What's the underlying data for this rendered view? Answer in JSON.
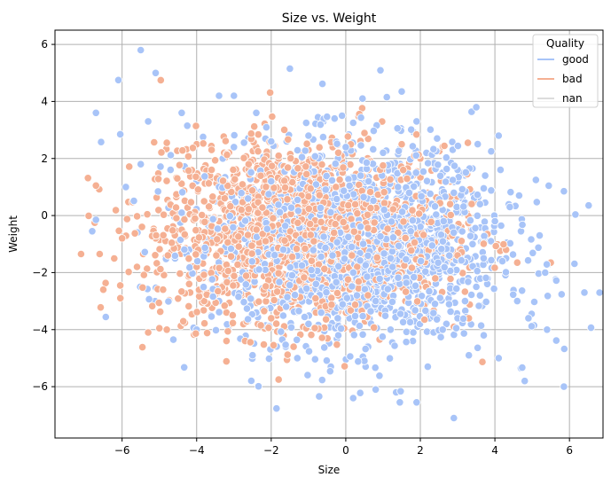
{
  "chart_data": {
    "type": "scatter",
    "title": "Size vs. Weight",
    "xlabel": "Size",
    "ylabel": "Weight",
    "xlim": [
      -7.8,
      6.9
    ],
    "ylim": [
      -7.8,
      6.5
    ],
    "xticks": [
      -6,
      -4,
      -2,
      0,
      2,
      4,
      6
    ],
    "yticks": [
      -6,
      -4,
      -2,
      0,
      2,
      4,
      6
    ],
    "grid": true,
    "legend": {
      "title": "Quality",
      "placement": "top-right",
      "entries": [
        {
          "name": "good",
          "color": "#a8c4f8"
        },
        {
          "name": "bad",
          "color": "#f5b093"
        },
        {
          "name": "nan",
          "color": "#dcdcdc"
        }
      ]
    },
    "series": [
      {
        "name": "good",
        "color": "#a8c4f8",
        "points": [
          [
            -5.5,
            5.8
          ],
          [
            -6.1,
            4.75
          ],
          [
            -5.1,
            5.0
          ],
          [
            -6.7,
            3.6
          ],
          [
            -6.05,
            2.85
          ],
          [
            -5.3,
            3.3
          ],
          [
            -4.4,
            3.6
          ],
          [
            -4.25,
            3.15
          ],
          [
            -3.4,
            4.2
          ],
          [
            -3.0,
            4.2
          ],
          [
            -2.4,
            3.6
          ],
          [
            -1.5,
            5.15
          ],
          [
            -0.6,
            3.3
          ],
          [
            -0.3,
            3.4
          ],
          [
            -0.1,
            3.5
          ],
          [
            0.2,
            3.25
          ],
          [
            0.45,
            4.1
          ],
          [
            1.1,
            4.15
          ],
          [
            1.5,
            4.35
          ],
          [
            1.9,
            3.3
          ],
          [
            2.45,
            2.7
          ],
          [
            3.5,
            3.8
          ],
          [
            3.9,
            2.25
          ],
          [
            4.1,
            2.8
          ],
          [
            4.15,
            1.6
          ],
          [
            5.1,
            1.25
          ],
          [
            5.85,
            0.85
          ],
          [
            6.4,
            -2.7
          ],
          [
            5.4,
            -4.0
          ],
          [
            5.85,
            -6.0
          ],
          [
            4.8,
            -5.8
          ],
          [
            4.1,
            -5.0
          ],
          [
            3.7,
            -4.2
          ],
          [
            2.9,
            -7.1
          ],
          [
            1.9,
            -6.55
          ],
          [
            1.45,
            -6.55
          ],
          [
            0.8,
            -6.1
          ],
          [
            0.2,
            -6.4
          ],
          [
            1.35,
            -6.2
          ],
          [
            -1.3,
            -5.0
          ],
          [
            -2.5,
            -4.9
          ],
          [
            -4.0,
            -4.0
          ],
          [
            -5.9,
            1.0
          ],
          [
            -6.8,
            -0.55
          ],
          [
            -6.7,
            -0.15
          ],
          [
            -5.5,
            1.8
          ],
          [
            -4.7,
            1.6
          ],
          [
            -3.3,
            2.0
          ],
          [
            2.6,
            1.5
          ],
          [
            3.0,
            1.2
          ],
          [
            4.4,
            0.3
          ],
          [
            4.7,
            -0.55
          ],
          [
            5.2,
            -0.7
          ],
          [
            4.3,
            -1.5
          ],
          [
            3.5,
            -2.5
          ],
          [
            4.6,
            -3.0
          ],
          [
            4.9,
            -3.6
          ],
          [
            5.05,
            -3.85
          ],
          [
            -0.4,
            -5.3
          ],
          [
            0.5,
            -5.1
          ],
          [
            2.2,
            -5.3
          ],
          [
            3.3,
            -4.9
          ],
          [
            -3.5,
            0.5
          ],
          [
            -3.1,
            -0.2
          ],
          [
            -2.8,
            0.7
          ],
          [
            -2.6,
            -1.0
          ],
          [
            -2.2,
            0.2
          ],
          [
            -2.0,
            1.2
          ],
          [
            -1.8,
            -1.8
          ],
          [
            -1.5,
            0.9
          ],
          [
            -1.2,
            -0.6
          ],
          [
            -1.0,
            1.7
          ],
          [
            -0.8,
            -2.4
          ],
          [
            -0.5,
            0.3
          ],
          [
            -0.3,
            -1.2
          ],
          [
            0.0,
            0.8
          ],
          [
            0.2,
            -2.0
          ],
          [
            0.4,
            1.4
          ],
          [
            0.6,
            -0.4
          ],
          [
            0.8,
            -3.0
          ],
          [
            1.0,
            0.1
          ],
          [
            1.2,
            -1.5
          ],
          [
            1.4,
            1.0
          ],
          [
            1.6,
            -2.6
          ],
          [
            1.8,
            -0.8
          ],
          [
            2.0,
            0.6
          ],
          [
            2.2,
            -3.4
          ],
          [
            2.4,
            -1.2
          ],
          [
            2.6,
            0.2
          ],
          [
            2.8,
            -2.0
          ],
          [
            3.0,
            -0.5
          ],
          [
            3.2,
            -3.0
          ],
          [
            3.4,
            -1.0
          ],
          [
            3.6,
            0.4
          ],
          [
            3.8,
            -2.2
          ],
          [
            4.0,
            -0.2
          ],
          [
            -3.8,
            -2.0
          ],
          [
            -3.4,
            -3.0
          ],
          [
            -2.4,
            -3.4
          ],
          [
            -1.6,
            -3.2
          ],
          [
            -1.0,
            -3.8
          ],
          [
            -0.2,
            -4.2
          ],
          [
            0.6,
            -4.6
          ],
          [
            1.2,
            -4.0
          ],
          [
            1.8,
            -4.4
          ],
          [
            2.6,
            -4.0
          ],
          [
            3.0,
            -3.6
          ],
          [
            -4.0,
            1.2
          ],
          [
            -3.0,
            2.4
          ],
          [
            -2.0,
            2.6
          ],
          [
            -1.0,
            2.8
          ],
          [
            0.0,
            2.4
          ],
          [
            1.0,
            2.2
          ],
          [
            2.0,
            2.0
          ],
          [
            3.0,
            1.6
          ],
          [
            -0.6,
            -1.8
          ],
          [
            0.3,
            -2.8
          ],
          [
            1.5,
            -3.3
          ],
          [
            2.3,
            -2.6
          ],
          [
            3.3,
            -1.6
          ],
          [
            0.9,
            -1.1
          ],
          [
            -1.4,
            -2.6
          ],
          [
            -2.6,
            1.6
          ],
          [
            -3.6,
            -0.8
          ],
          [
            -4.4,
            0.1
          ],
          [
            -4.2,
            -1.2
          ],
          [
            0.1,
            -3.6
          ],
          [
            1.1,
            -2.2
          ],
          [
            1.7,
            0.8
          ],
          [
            2.7,
            -3.8
          ],
          [
            3.6,
            -2.8
          ],
          [
            4.2,
            -1.6
          ],
          [
            -0.9,
            0.6
          ],
          [
            -1.9,
            -0.4
          ],
          [
            0.5,
            0.4
          ],
          [
            1.3,
            1.6
          ],
          [
            2.1,
            -1.7
          ],
          [
            -0.2,
            1.6
          ],
          [
            -2.9,
            -1.6
          ],
          [
            -3.2,
            1.0
          ],
          [
            2.9,
            0.8
          ],
          [
            3.9,
            0.9
          ]
        ]
      },
      {
        "name": "bad",
        "color": "#f5b093",
        "points": [
          [
            -7.1,
            -1.35
          ],
          [
            -6.6,
            -1.35
          ],
          [
            -6.7,
            1.05
          ],
          [
            -6.05,
            -2.45
          ],
          [
            -6.0,
            -0.8
          ],
          [
            -5.6,
            -1.8
          ],
          [
            -5.3,
            -4.1
          ],
          [
            -5.0,
            -3.95
          ],
          [
            -4.8,
            -4.0
          ],
          [
            -4.9,
            -2.6
          ],
          [
            -5.1,
            -0.8
          ],
          [
            -4.8,
            2.55
          ],
          [
            -4.0,
            2.5
          ],
          [
            -3.6,
            2.3
          ],
          [
            -3.2,
            -4.4
          ],
          [
            -2.7,
            -4.4
          ],
          [
            -1.8,
            -5.75
          ],
          [
            -1.4,
            -4.6
          ],
          [
            2.9,
            -3.9
          ],
          [
            3.3,
            -3.6
          ],
          [
            4.3,
            -1.2
          ],
          [
            4.6,
            -1.65
          ],
          [
            5.5,
            -1.65
          ],
          [
            3.1,
            -0.4
          ],
          [
            2.8,
            0.4
          ],
          [
            3.5,
            0.5
          ],
          [
            2.0,
            2.0
          ],
          [
            1.5,
            2.5
          ],
          [
            0.6,
            1.6
          ],
          [
            -0.2,
            2.2
          ],
          [
            -1.0,
            2.3
          ],
          [
            -1.8,
            2.0
          ],
          [
            -2.4,
            2.4
          ],
          [
            -3.0,
            1.4
          ],
          [
            -3.8,
            0.5
          ],
          [
            -4.4,
            -0.5
          ],
          [
            -4.6,
            -1.5
          ],
          [
            -4.2,
            -2.4
          ],
          [
            -3.8,
            -3.0
          ],
          [
            -3.2,
            -3.4
          ],
          [
            -2.6,
            -3.2
          ],
          [
            -2.0,
            -3.6
          ],
          [
            -1.4,
            -3.0
          ],
          [
            -0.8,
            -3.4
          ],
          [
            -0.2,
            -2.8
          ],
          [
            0.4,
            -3.2
          ],
          [
            1.0,
            -2.8
          ],
          [
            1.6,
            -3.0
          ],
          [
            2.2,
            -2.4
          ],
          [
            2.6,
            -1.8
          ],
          [
            -3.4,
            -0.2
          ],
          [
            -3.0,
            -1.0
          ],
          [
            -2.8,
            0.2
          ],
          [
            -2.6,
            -2.0
          ],
          [
            -2.4,
            -0.6
          ],
          [
            -2.2,
            1.0
          ],
          [
            -2.0,
            -1.4
          ],
          [
            -1.8,
            0.4
          ],
          [
            -1.6,
            -2.4
          ],
          [
            -1.4,
            0.8
          ],
          [
            -1.2,
            -1.6
          ],
          [
            -1.0,
            -0.2
          ],
          [
            -0.8,
            1.2
          ],
          [
            -0.6,
            -0.8
          ],
          [
            -0.4,
            -2.0
          ],
          [
            -0.2,
            0.0
          ],
          [
            0.0,
            -1.4
          ],
          [
            0.2,
            0.6
          ],
          [
            0.4,
            -1.8
          ],
          [
            0.6,
            -0.2
          ],
          [
            0.8,
            -1.0
          ],
          [
            1.0,
            0.8
          ],
          [
            1.2,
            -2.0
          ],
          [
            1.4,
            -0.6
          ],
          [
            1.6,
            0.4
          ],
          [
            1.8,
            -1.4
          ],
          [
            2.0,
            -0.4
          ],
          [
            2.2,
            0.8
          ],
          [
            2.4,
            -2.2
          ],
          [
            -3.6,
            1.6
          ],
          [
            -3.2,
            -2.2
          ],
          [
            -2.8,
            -2.8
          ],
          [
            -2.2,
            -2.6
          ],
          [
            -1.6,
            1.6
          ],
          [
            -1.2,
            2.0
          ],
          [
            -0.6,
            0.6
          ],
          [
            0.0,
            -0.4
          ],
          [
            0.6,
            -2.4
          ],
          [
            1.2,
            0.2
          ],
          [
            1.8,
            0.2
          ],
          [
            -4.0,
            -1.8
          ],
          [
            -3.8,
            -0.8
          ],
          [
            -2.4,
            -1.6
          ],
          [
            -1.6,
            -1.0
          ],
          [
            -1.0,
            -2.6
          ],
          [
            -0.2,
            -1.0
          ],
          [
            0.8,
            0.4
          ],
          [
            1.4,
            -1.6
          ],
          [
            2.2,
            -1.0
          ],
          [
            3.0,
            -1.4
          ]
        ]
      }
    ]
  }
}
